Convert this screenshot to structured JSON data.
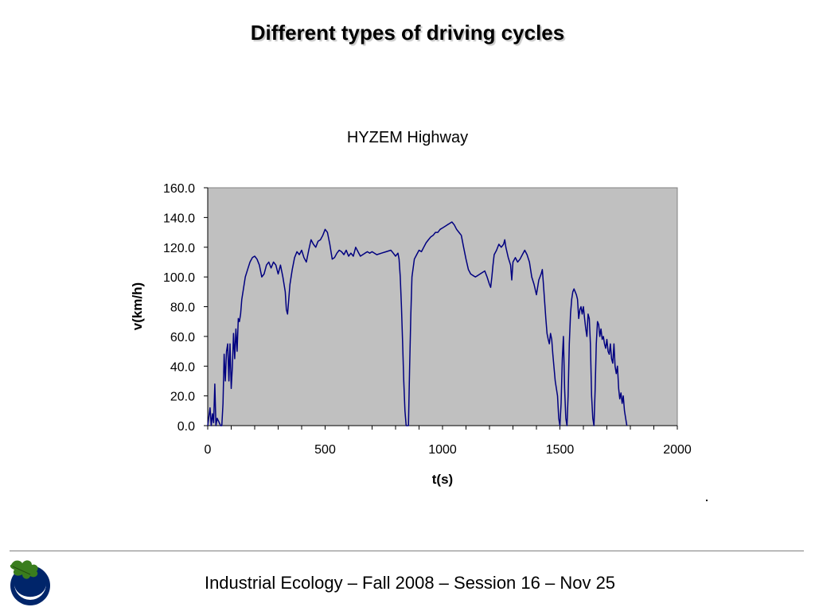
{
  "slide": {
    "title": "Different types of driving cycles",
    "footer": "Industrial Ecology – Fall 2008 – Session 16 – Nov 25"
  },
  "icons": {
    "logo": "oak-leaf-moon-logo-icon"
  },
  "colors": {
    "plot_bg": "#c0c0c0",
    "series": "#000080",
    "accent": "#00256a"
  },
  "chart_data": {
    "type": "line",
    "title": "HYZEM Highway",
    "xlabel": "t(s)",
    "ylabel": "v(km/h)",
    "xlim": [
      0,
      2000
    ],
    "ylim": [
      0,
      160
    ],
    "xticks": [
      0,
      500,
      1000,
      1500,
      2000
    ],
    "yticks": [
      0,
      20,
      40,
      60,
      80,
      100,
      120,
      140,
      160
    ],
    "yticklabels": [
      "0.0",
      "20.0",
      "40.0",
      "60.0",
      "80.0",
      "100.0",
      "120.0",
      "140.0",
      "160.0"
    ],
    "grid": false,
    "legend": "none",
    "series": [
      {
        "points": [
          [
            0,
            0
          ],
          [
            10,
            12
          ],
          [
            15,
            0
          ],
          [
            20,
            8
          ],
          [
            25,
            2
          ],
          [
            30,
            28
          ],
          [
            35,
            0
          ],
          [
            40,
            5
          ],
          [
            55,
            0
          ],
          [
            60,
            0
          ],
          [
            65,
            15
          ],
          [
            70,
            48
          ],
          [
            75,
            30
          ],
          [
            80,
            50
          ],
          [
            85,
            55
          ],
          [
            90,
            30
          ],
          [
            95,
            55
          ],
          [
            100,
            25
          ],
          [
            105,
            40
          ],
          [
            110,
            62
          ],
          [
            115,
            45
          ],
          [
            120,
            65
          ],
          [
            125,
            50
          ],
          [
            130,
            72
          ],
          [
            135,
            70
          ],
          [
            140,
            75
          ],
          [
            145,
            85
          ],
          [
            150,
            90
          ],
          [
            160,
            100
          ],
          [
            170,
            105
          ],
          [
            180,
            110
          ],
          [
            190,
            113
          ],
          [
            200,
            114
          ],
          [
            210,
            112
          ],
          [
            220,
            108
          ],
          [
            230,
            100
          ],
          [
            240,
            102
          ],
          [
            250,
            108
          ],
          [
            260,
            110
          ],
          [
            270,
            106
          ],
          [
            280,
            110
          ],
          [
            290,
            108
          ],
          [
            300,
            102
          ],
          [
            310,
            108
          ],
          [
            320,
            100
          ],
          [
            330,
            90
          ],
          [
            335,
            78
          ],
          [
            340,
            75
          ],
          [
            345,
            85
          ],
          [
            350,
            95
          ],
          [
            360,
            105
          ],
          [
            370,
            113
          ],
          [
            380,
            117
          ],
          [
            390,
            115
          ],
          [
            400,
            118
          ],
          [
            410,
            113
          ],
          [
            420,
            110
          ],
          [
            430,
            118
          ],
          [
            440,
            125
          ],
          [
            450,
            122
          ],
          [
            460,
            120
          ],
          [
            470,
            124
          ],
          [
            480,
            125
          ],
          [
            490,
            128
          ],
          [
            500,
            132
          ],
          [
            510,
            130
          ],
          [
            520,
            122
          ],
          [
            530,
            112
          ],
          [
            540,
            113
          ],
          [
            550,
            116
          ],
          [
            560,
            118
          ],
          [
            570,
            117
          ],
          [
            580,
            115
          ],
          [
            590,
            118
          ],
          [
            600,
            114
          ],
          [
            610,
            116
          ],
          [
            620,
            114
          ],
          [
            630,
            120
          ],
          [
            640,
            117
          ],
          [
            650,
            114
          ],
          [
            660,
            115
          ],
          [
            670,
            116
          ],
          [
            680,
            117
          ],
          [
            690,
            116
          ],
          [
            700,
            117
          ],
          [
            720,
            115
          ],
          [
            740,
            116
          ],
          [
            760,
            117
          ],
          [
            780,
            118
          ],
          [
            790,
            116
          ],
          [
            800,
            114
          ],
          [
            810,
            116
          ],
          [
            815,
            112
          ],
          [
            820,
            100
          ],
          [
            825,
            80
          ],
          [
            830,
            55
          ],
          [
            835,
            30
          ],
          [
            840,
            10
          ],
          [
            845,
            0
          ],
          [
            855,
            0
          ],
          [
            860,
            40
          ],
          [
            865,
            75
          ],
          [
            870,
            100
          ],
          [
            880,
            112
          ],
          [
            890,
            115
          ],
          [
            900,
            118
          ],
          [
            910,
            117
          ],
          [
            920,
            120
          ],
          [
            930,
            123
          ],
          [
            940,
            125
          ],
          [
            950,
            127
          ],
          [
            960,
            128
          ],
          [
            970,
            130
          ],
          [
            980,
            130
          ],
          [
            990,
            132
          ],
          [
            1000,
            133
          ],
          [
            1010,
            134
          ],
          [
            1020,
            135
          ],
          [
            1030,
            136
          ],
          [
            1040,
            137
          ],
          [
            1050,
            135
          ],
          [
            1060,
            132
          ],
          [
            1070,
            130
          ],
          [
            1080,
            128
          ],
          [
            1090,
            120
          ],
          [
            1100,
            112
          ],
          [
            1110,
            105
          ],
          [
            1120,
            102
          ],
          [
            1130,
            101
          ],
          [
            1140,
            100
          ],
          [
            1150,
            101
          ],
          [
            1160,
            102
          ],
          [
            1170,
            103
          ],
          [
            1180,
            104
          ],
          [
            1190,
            100
          ],
          [
            1200,
            95
          ],
          [
            1205,
            93
          ],
          [
            1210,
            100
          ],
          [
            1215,
            108
          ],
          [
            1220,
            115
          ],
          [
            1230,
            118
          ],
          [
            1240,
            122
          ],
          [
            1250,
            120
          ],
          [
            1260,
            122
          ],
          [
            1265,
            125
          ],
          [
            1270,
            120
          ],
          [
            1280,
            113
          ],
          [
            1290,
            108
          ],
          [
            1295,
            98
          ],
          [
            1300,
            110
          ],
          [
            1310,
            113
          ],
          [
            1320,
            110
          ],
          [
            1330,
            112
          ],
          [
            1340,
            115
          ],
          [
            1350,
            118
          ],
          [
            1360,
            115
          ],
          [
            1370,
            110
          ],
          [
            1380,
            100
          ],
          [
            1390,
            95
          ],
          [
            1400,
            88
          ],
          [
            1410,
            98
          ],
          [
            1420,
            102
          ],
          [
            1425,
            105
          ],
          [
            1430,
            95
          ],
          [
            1440,
            72
          ],
          [
            1445,
            62
          ],
          [
            1450,
            58
          ],
          [
            1455,
            55
          ],
          [
            1460,
            62
          ],
          [
            1465,
            58
          ],
          [
            1470,
            48
          ],
          [
            1480,
            30
          ],
          [
            1490,
            20
          ],
          [
            1495,
            5
          ],
          [
            1500,
            0
          ],
          [
            1505,
            15
          ],
          [
            1510,
            45
          ],
          [
            1515,
            60
          ],
          [
            1520,
            25
          ],
          [
            1525,
            5
          ],
          [
            1530,
            0
          ],
          [
            1535,
            20
          ],
          [
            1540,
            55
          ],
          [
            1545,
            75
          ],
          [
            1550,
            85
          ],
          [
            1555,
            90
          ],
          [
            1560,
            92
          ],
          [
            1565,
            90
          ],
          [
            1570,
            88
          ],
          [
            1575,
            85
          ],
          [
            1580,
            72
          ],
          [
            1585,
            78
          ],
          [
            1590,
            80
          ],
          [
            1595,
            75
          ],
          [
            1600,
            80
          ],
          [
            1605,
            72
          ],
          [
            1610,
            65
          ],
          [
            1615,
            60
          ],
          [
            1620,
            75
          ],
          [
            1625,
            72
          ],
          [
            1630,
            55
          ],
          [
            1635,
            20
          ],
          [
            1640,
            5
          ],
          [
            1645,
            0
          ],
          [
            1650,
            25
          ],
          [
            1655,
            55
          ],
          [
            1660,
            70
          ],
          [
            1665,
            68
          ],
          [
            1670,
            60
          ],
          [
            1675,
            65
          ],
          [
            1680,
            58
          ],
          [
            1685,
            60
          ],
          [
            1690,
            55
          ],
          [
            1695,
            52
          ],
          [
            1700,
            58
          ],
          [
            1705,
            50
          ],
          [
            1710,
            48
          ],
          [
            1715,
            55
          ],
          [
            1720,
            45
          ],
          [
            1725,
            42
          ],
          [
            1730,
            55
          ],
          [
            1735,
            40
          ],
          [
            1740,
            35
          ],
          [
            1745,
            40
          ],
          [
            1750,
            25
          ],
          [
            1755,
            18
          ],
          [
            1760,
            22
          ],
          [
            1765,
            15
          ],
          [
            1770,
            20
          ],
          [
            1775,
            10
          ],
          [
            1780,
            5
          ],
          [
            1785,
            0
          ]
        ]
      }
    ]
  }
}
